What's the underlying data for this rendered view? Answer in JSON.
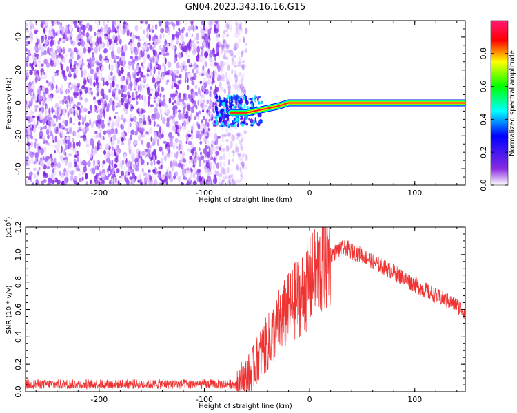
{
  "title": "GN04.2023.343.16.16.G15",
  "chart_data": [
    {
      "type": "heatmap",
      "xlabel": "Height of straight line (km)",
      "ylabel": "Frequency (Hz)",
      "xlim": [
        -270,
        148
      ],
      "ylim": [
        -50,
        50
      ],
      "xticks": [
        -200,
        -100,
        0,
        100
      ],
      "yticks": [
        -40,
        -20,
        0,
        20,
        40
      ],
      "colorbar": {
        "label": "Normalized spectral amplitude",
        "range": [
          0,
          1
        ],
        "ticks": [
          "0.0",
          "0.2",
          "0.4",
          "0.6",
          "0.8"
        ],
        "tick_values": [
          0.0,
          0.2,
          0.4,
          0.6,
          0.8
        ],
        "colormap": [
          "#ffffff",
          "#8a2be2",
          "#0000ff",
          "#00ffff",
          "#00ff00",
          "#ffff00",
          "#ff0000",
          "#ff0080"
        ]
      },
      "ridge": {
        "x": [
          -75,
          -60,
          -45,
          -30,
          -20,
          -10,
          0,
          50,
          100,
          148
        ],
        "y": [
          -6,
          -6,
          -4,
          -2,
          0,
          0,
          0,
          0,
          0,
          0
        ]
      },
      "noise_region": {
        "x_from": -270,
        "x_to": -70
      }
    },
    {
      "type": "line",
      "xlabel": "Height of straight line (km)",
      "ylabel": "SNR (10 * v/v)",
      "y_multiplier": "(x10",
      "y_multiplier_exp": "4",
      "y_multiplier_close": ")",
      "xlim": [
        -270,
        148
      ],
      "ylim": [
        0,
        1.2
      ],
      "xticks": [
        -200,
        -100,
        0,
        100
      ],
      "yticks": [
        "0.0",
        "0.2",
        "0.4",
        "0.6",
        "0.8",
        "1.0",
        "1.2"
      ],
      "ytick_values": [
        0.0,
        0.2,
        0.4,
        0.6,
        0.8,
        1.0,
        1.2
      ],
      "series": [
        {
          "color": "#ee3333",
          "x": [
            -270,
            -200,
            -150,
            -100,
            -80,
            -60,
            -55,
            -50,
            -45,
            -40,
            -35,
            -30,
            -25,
            -20,
            -15,
            -10,
            -5,
            0,
            5,
            10,
            15,
            20,
            25,
            30,
            35,
            40,
            50,
            60,
            80,
            100,
            120,
            140,
            148
          ],
          "values": [
            0.05,
            0.05,
            0.05,
            0.05,
            0.07,
            0.1,
            0.15,
            0.22,
            0.3,
            0.35,
            0.42,
            0.5,
            0.55,
            0.6,
            0.65,
            0.7,
            0.73,
            0.8,
            0.85,
            0.9,
            0.95,
            1.0,
            1.02,
            1.04,
            1.05,
            1.02,
            1.0,
            0.95,
            0.87,
            0.78,
            0.7,
            0.63,
            0.58
          ]
        }
      ]
    }
  ]
}
